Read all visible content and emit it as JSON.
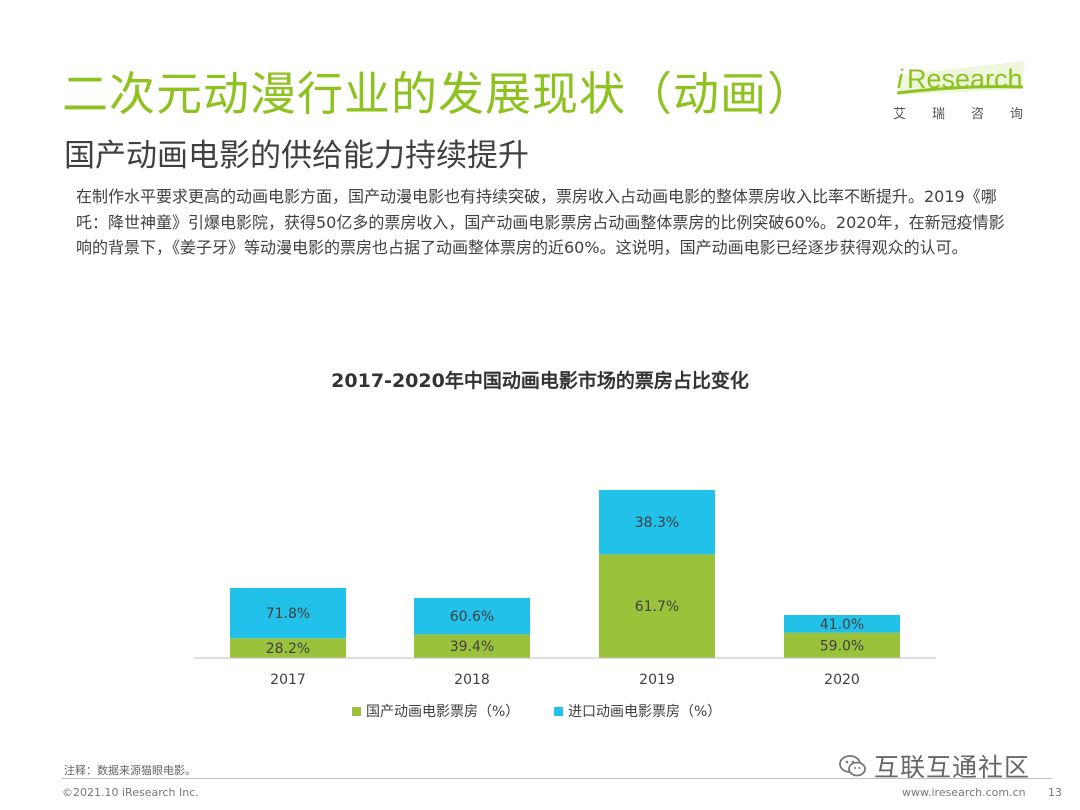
{
  "header": {
    "title": "二次元动漫行业的发展现状（动画）",
    "subtitle": "国产动画电影的供给能力持续提升"
  },
  "logo": {
    "brand_prefix": "i",
    "brand_rest": "Research",
    "chars": [
      "艾",
      "瑞",
      "咨",
      "询"
    ],
    "color": "#8dc21f"
  },
  "description": "在制作水平要求更高的动画电影方面，国产动漫电影也有持续突破，票房收入占动画电影的整体票房收入比率不断提升。2019《哪吒：降世神童》引爆电影院，获得50亿多的票房收入，国产动画电影票房占动画整体票房的比例突破60%。2020年，在新冠疫情影响的背景下，《姜子牙》等动漫电影的票房也占据了动画整体票房的近60%。这说明，国产动画电影已经逐步获得观众的认可。",
  "chart_data": {
    "type": "bar",
    "stacked": true,
    "title": "2017-2020年中国动画电影市场的票房占比变化",
    "categories": [
      "2017",
      "2018",
      "2019",
      "2020"
    ],
    "series": [
      {
        "name": "国产动画电影票房（%）",
        "values": [
          28.2,
          39.4,
          61.7,
          59.0
        ],
        "labels": [
          "28.2%",
          "39.4%",
          "61.7%",
          "59.0%"
        ],
        "color": "#9bc23b"
      },
      {
        "name": "进口动画电影票房（%）",
        "values": [
          71.8,
          60.6,
          38.3,
          41.0
        ],
        "labels": [
          "71.8%",
          "60.6%",
          "38.3%",
          "41.0%"
        ],
        "color": "#21c1ea"
      }
    ],
    "legend_position": "bottom",
    "grid": false
  },
  "footer": {
    "note": "注释：数据来源猫眼电影。",
    "copyright": "©2021.10 iResearch Inc.",
    "url": "www.iresearch.com.cn",
    "page": "13"
  },
  "watermark": {
    "text": "互联互通社区",
    "icon": "wechat-icon"
  }
}
